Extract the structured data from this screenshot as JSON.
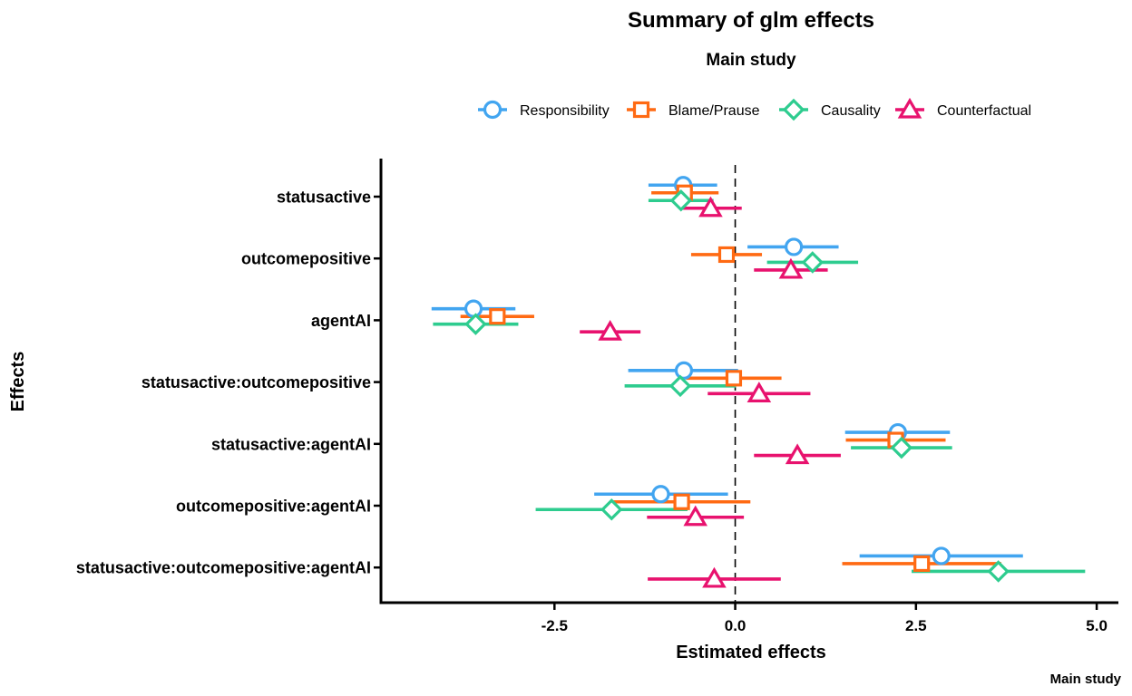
{
  "chart_data": {
    "type": "scatter",
    "subtype": "coefficient-plot-with-error-bars",
    "title": "Summary of glm effects",
    "subtitle": "Main study",
    "caption": "Main study",
    "xlabel": "Estimated effects",
    "ylabel": "Effects",
    "xlim": [
      -4.9,
      5.3
    ],
    "xticks": [
      -2.5,
      0.0,
      2.5,
      5.0
    ],
    "xtick_labels": [
      "-2.5",
      "0.0",
      "2.5",
      "5.0"
    ],
    "reference_line_x": 0,
    "legend_position": "top",
    "categories": [
      "statusactive",
      "outcomepositive",
      "agentAI",
      "statusactive:outcomepositive",
      "statusactive:agentAI",
      "outcomepositive:agentAI",
      "statusactive:outcomepositive:agentAI"
    ],
    "series": [
      {
        "name": "Responsibility",
        "color": "#42A5F0",
        "marker": "circle",
        "estimates": [
          -0.72,
          0.81,
          -3.62,
          -0.71,
          2.25,
          -1.03,
          2.85
        ],
        "lower": [
          -1.2,
          0.17,
          -4.2,
          -1.48,
          1.52,
          -1.95,
          1.72
        ],
        "upper": [
          -0.25,
          1.43,
          -3.04,
          0.04,
          2.97,
          -0.1,
          3.98
        ]
      },
      {
        "name": "Blame/Prause",
        "color": "#FF6A13",
        "marker": "square",
        "estimates": [
          -0.7,
          -0.12,
          -3.29,
          -0.02,
          2.22,
          -0.74,
          2.58
        ],
        "lower": [
          -1.16,
          -0.61,
          -3.8,
          -0.68,
          1.53,
          -1.69,
          1.48
        ],
        "upper": [
          -0.23,
          0.37,
          -2.78,
          0.64,
          2.91,
          0.21,
          3.68
        ]
      },
      {
        "name": "Causality",
        "color": "#2ECC8F",
        "marker": "diamond",
        "estimates": [
          -0.75,
          1.07,
          -3.59,
          -0.76,
          2.3,
          -1.71,
          3.64
        ],
        "lower": [
          -1.2,
          0.44,
          -4.18,
          -1.53,
          1.6,
          -2.76,
          2.44
        ],
        "upper": [
          -0.3,
          1.7,
          -3.0,
          0.01,
          3.0,
          -0.66,
          4.84
        ]
      },
      {
        "name": "Counterfactual",
        "color": "#E8126E",
        "marker": "triangle",
        "estimates": [
          -0.34,
          0.77,
          -1.73,
          0.33,
          0.86,
          -0.55,
          -0.29
        ],
        "lower": [
          -0.77,
          0.26,
          -2.15,
          -0.38,
          0.26,
          -1.22,
          -1.21
        ],
        "upper": [
          0.09,
          1.28,
          -1.31,
          1.04,
          1.46,
          0.12,
          0.63
        ]
      }
    ],
    "grid": false
  }
}
